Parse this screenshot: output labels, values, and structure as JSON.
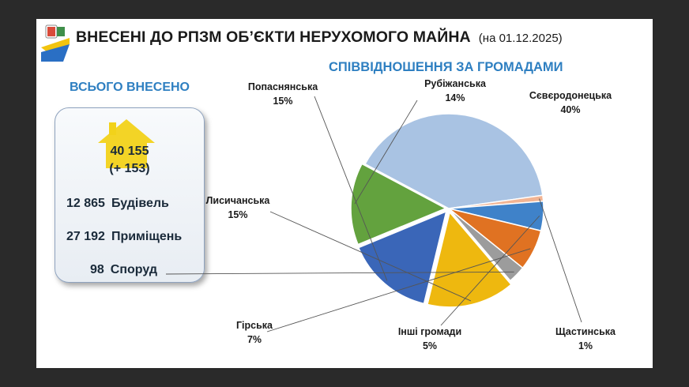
{
  "header": {
    "title": "ВНЕСЕНІ ДО РПЗМ ОБ’ЄКТИ НЕРУХОМОГО МАЙНА",
    "date": "(на 01.12.2025)"
  },
  "summary": {
    "heading": "ВСЬОГО ВНЕСЕНО",
    "total": "40 155",
    "delta": "(+ 153)",
    "items": [
      {
        "value": "12 865",
        "label": "Будівель"
      },
      {
        "value": "27 192",
        "label": "Приміщень"
      },
      {
        "value": "98",
        "label": "Споруд"
      }
    ]
  },
  "icons": {
    "logo": "regional-emblem-icon",
    "house": "house-icon"
  },
  "colors": {
    "heading": "#2e7fc1",
    "house": "#f2d21a"
  },
  "chart_data": {
    "type": "pie",
    "title": "СПІВВІДНОШЕННЯ ЗА ГРОМАДАМИ",
    "slices": [
      {
        "name": "Сєвєродонецька",
        "value": 40,
        "label": "40%",
        "color": "#a9c3e3"
      },
      {
        "name": "Щастинська",
        "value": 1,
        "label": "1%",
        "color": "#f2b493"
      },
      {
        "name": "Інші громади",
        "value": 5,
        "label": "5%",
        "color": "#3f82c9"
      },
      {
        "name": "Гірська",
        "value": 7,
        "label": "7%",
        "color": "#e07222"
      },
      {
        "name": "",
        "value": 3,
        "label": "",
        "color": "#9c9c9c"
      },
      {
        "name": "Лисичанська",
        "value": 15,
        "label": "15%",
        "color": "#eeb80f"
      },
      {
        "name": "Попаснянська",
        "value": 15,
        "label": "15%",
        "color": "#3a66b8"
      },
      {
        "name": "Рубіжанська",
        "value": 14,
        "label": "14%",
        "color": "#63a23e"
      }
    ]
  }
}
